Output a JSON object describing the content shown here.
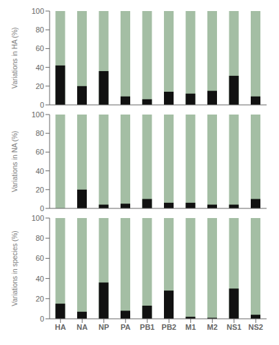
{
  "chart_data": [
    {
      "type": "bar",
      "categories": [
        "HA",
        "NA",
        "NP",
        "PA",
        "PB1",
        "PB2",
        "M1",
        "M2",
        "NS1",
        "NS2"
      ],
      "y_label": "Variations in HA (%)",
      "series": [
        {
          "color": "#a4bea4",
          "values": [
            100,
            100,
            100,
            100,
            100,
            100,
            100,
            100,
            100,
            100
          ]
        },
        {
          "color": "#111111",
          "values": [
            42,
            20,
            36,
            9,
            6,
            14,
            12,
            15,
            31,
            9
          ]
        }
      ],
      "ylim": [
        0,
        100
      ],
      "yticks": [
        0,
        20,
        40,
        60,
        80,
        100
      ],
      "grid": false,
      "tick_labels": "y"
    },
    {
      "type": "bar",
      "categories": [
        "HA",
        "NA",
        "NP",
        "PA",
        "PB1",
        "PB2",
        "M1",
        "M2",
        "NS1",
        "NS2"
      ],
      "y_label": "Variations in NA (%)",
      "series": [
        {
          "color": "#a4bea4",
          "values": [
            100,
            100,
            100,
            100,
            100,
            100,
            100,
            100,
            100,
            100
          ]
        },
        {
          "color": "#111111",
          "values": [
            0,
            20,
            4,
            5,
            10,
            6,
            6,
            4,
            4,
            10
          ]
        }
      ],
      "ylim": [
        0,
        100
      ],
      "yticks": [
        0,
        20,
        40,
        60,
        80,
        100
      ],
      "grid": false,
      "tick_labels": "y"
    },
    {
      "type": "bar",
      "categories": [
        "HA",
        "NA",
        "NP",
        "PA",
        "PB1",
        "PB2",
        "M1",
        "M2",
        "NS1",
        "NS2"
      ],
      "y_label": "Variations in species (%)",
      "series": [
        {
          "color": "#a4bea4",
          "values": [
            100,
            100,
            100,
            100,
            100,
            100,
            100,
            100,
            100,
            100
          ]
        },
        {
          "color": "#111111",
          "values": [
            15,
            7,
            36,
            8,
            13,
            28,
            2,
            1,
            30,
            4
          ]
        }
      ],
      "ylim": [
        0,
        100
      ],
      "yticks": [
        0,
        20,
        40,
        60,
        80,
        100
      ],
      "grid": false
    }
  ]
}
